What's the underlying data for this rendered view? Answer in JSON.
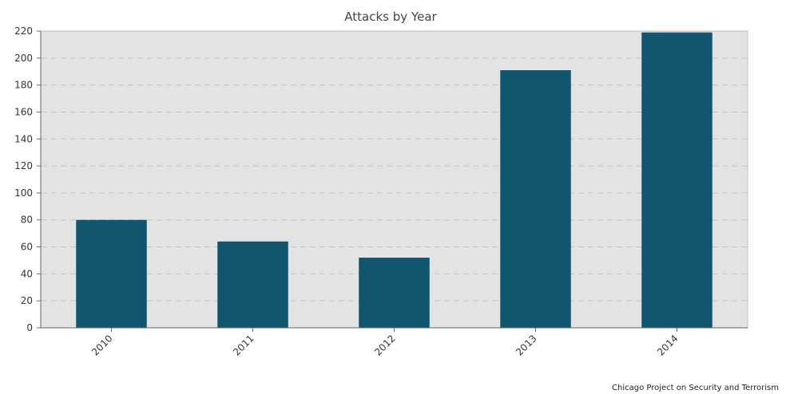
{
  "chart_data": {
    "type": "bar",
    "title": "Attacks by Year",
    "xlabel": "",
    "ylabel": "",
    "categories": [
      "2010",
      "2011",
      "2012",
      "2013",
      "2014"
    ],
    "values": [
      80,
      64,
      52,
      191,
      219
    ],
    "ylim": [
      0,
      220
    ],
    "yticks": [
      0,
      20,
      40,
      60,
      80,
      100,
      120,
      140,
      160,
      180,
      200,
      220
    ],
    "grid": true,
    "legend": "none",
    "source": "Chicago Project on Security and Terrorism",
    "colors": {
      "bar": "#11566f",
      "plot_background": "#e3e3e3",
      "gridline": "#c4c4c4",
      "axis": "#666666"
    }
  }
}
